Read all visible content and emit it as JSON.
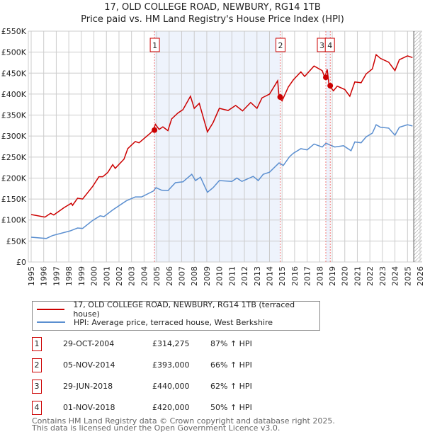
{
  "chart_data": {
    "type": "line",
    "title": "17, OLD COLLEGE ROAD, NEWBURY, RG14 1TB",
    "subtitle": "Price paid vs. HM Land Registry's House Price Index (HPI)",
    "xlim": [
      1995,
      2026
    ],
    "ylim": [
      0,
      550000
    ],
    "yticks": [
      {
        "v": 0,
        "l": "£0"
      },
      {
        "v": 50000,
        "l": "£50K"
      },
      {
        "v": 100000,
        "l": "£100K"
      },
      {
        "v": 150000,
        "l": "£150K"
      },
      {
        "v": 200000,
        "l": "£200K"
      },
      {
        "v": 250000,
        "l": "£250K"
      },
      {
        "v": 300000,
        "l": "£300K"
      },
      {
        "v": 350000,
        "l": "£350K"
      },
      {
        "v": 400000,
        "l": "£400K"
      },
      {
        "v": 450000,
        "l": "£450K"
      },
      {
        "v": 500000,
        "l": "£500K"
      },
      {
        "v": 550000,
        "l": "£550K"
      }
    ],
    "xticks": [
      "1995",
      "1996",
      "1997",
      "1998",
      "1999",
      "2000",
      "2001",
      "2002",
      "2003",
      "2004",
      "2005",
      "2006",
      "2007",
      "2008",
      "2009",
      "2010",
      "2011",
      "2012",
      "2013",
      "2014",
      "2015",
      "2016",
      "2017",
      "2018",
      "2019",
      "2020",
      "2021",
      "2022",
      "2023",
      "2024",
      "2025",
      "2026"
    ],
    "series": [
      {
        "name": "17, OLD COLLEGE ROAD, NEWBURY, RG14 1TB (terraced house)",
        "color": "#cc0000",
        "points": [
          [
            1995,
            113
          ],
          [
            1996.1,
            107
          ],
          [
            1996.55,
            116
          ],
          [
            1996.8,
            112
          ],
          [
            1997.6,
            129
          ],
          [
            1998.2,
            140
          ],
          [
            1998.3,
            135
          ],
          [
            1998.7,
            152
          ],
          [
            1999.1,
            150
          ],
          [
            1999.9,
            180
          ],
          [
            2000.4,
            203
          ],
          [
            2000.7,
            203
          ],
          [
            2001.1,
            213
          ],
          [
            2001.5,
            232
          ],
          [
            2001.7,
            223
          ],
          [
            2002.4,
            245
          ],
          [
            2002.7,
            270
          ],
          [
            2003.3,
            287
          ],
          [
            2003.6,
            284
          ],
          [
            2004.5,
            307
          ],
          [
            2004.74,
            314
          ],
          [
            2004.9,
            328
          ],
          [
            2005.2,
            316
          ],
          [
            2005.5,
            322
          ],
          [
            2005.9,
            313
          ],
          [
            2006.2,
            341
          ],
          [
            2006.7,
            355
          ],
          [
            2007.1,
            363
          ],
          [
            2007.7,
            395
          ],
          [
            2008,
            366
          ],
          [
            2008.4,
            378
          ],
          [
            2009.05,
            310
          ],
          [
            2009.5,
            332
          ],
          [
            2010,
            366
          ],
          [
            2010.7,
            361
          ],
          [
            2011.3,
            373
          ],
          [
            2011.85,
            360
          ],
          [
            2012.5,
            380
          ],
          [
            2013,
            366
          ],
          [
            2013.4,
            391
          ],
          [
            2014,
            400
          ],
          [
            2014.65,
            432
          ],
          [
            2014.76,
            393
          ],
          [
            2015,
            384
          ],
          [
            2015.5,
            417
          ],
          [
            2015.9,
            434
          ],
          [
            2016.5,
            453
          ],
          [
            2016.8,
            442
          ],
          [
            2017.55,
            467
          ],
          [
            2018.2,
            456
          ],
          [
            2018.4,
            440
          ],
          [
            2018.6,
            459
          ],
          [
            2018.75,
            420
          ],
          [
            2019.1,
            408
          ],
          [
            2019.4,
            419
          ],
          [
            2020,
            411
          ],
          [
            2020.4,
            395
          ],
          [
            2020.8,
            429
          ],
          [
            2021.3,
            427
          ],
          [
            2021.7,
            448
          ],
          [
            2022.2,
            460
          ],
          [
            2022.5,
            494
          ],
          [
            2022.85,
            485
          ],
          [
            2023.5,
            476
          ],
          [
            2024,
            456
          ],
          [
            2024.35,
            482
          ],
          [
            2025,
            491
          ],
          [
            2025.4,
            487
          ]
        ]
      },
      {
        "name": "HPI: Average price, terraced house, West Berkshire",
        "color": "#5b8fd0",
        "points": [
          [
            1995,
            59
          ],
          [
            1996.2,
            56
          ],
          [
            1996.7,
            63
          ],
          [
            1998.1,
            74
          ],
          [
            1998.7,
            81
          ],
          [
            1999.1,
            80
          ],
          [
            1999.9,
            99
          ],
          [
            2000.5,
            110
          ],
          [
            2000.8,
            108
          ],
          [
            2001.5,
            124
          ],
          [
            2002.6,
            146
          ],
          [
            2003.3,
            155
          ],
          [
            2003.8,
            155
          ],
          [
            2004.74,
            169
          ],
          [
            2004.95,
            177
          ],
          [
            2005.4,
            171
          ],
          [
            2005.9,
            170
          ],
          [
            2006.5,
            189
          ],
          [
            2007.1,
            191
          ],
          [
            2007.8,
            209
          ],
          [
            2008.1,
            194
          ],
          [
            2008.5,
            202
          ],
          [
            2009.05,
            166
          ],
          [
            2009.5,
            177
          ],
          [
            2010,
            194
          ],
          [
            2011,
            192
          ],
          [
            2011.4,
            200
          ],
          [
            2011.8,
            192
          ],
          [
            2012.7,
            204
          ],
          [
            2013.1,
            194
          ],
          [
            2013.5,
            209
          ],
          [
            2014,
            214
          ],
          [
            2014.76,
            236
          ],
          [
            2015.1,
            230
          ],
          [
            2015.6,
            251
          ],
          [
            2015.9,
            259
          ],
          [
            2016.5,
            270
          ],
          [
            2017,
            267
          ],
          [
            2017.55,
            281
          ],
          [
            2018.2,
            274
          ],
          [
            2018.5,
            283
          ],
          [
            2019.2,
            274
          ],
          [
            2019.9,
            277
          ],
          [
            2020.5,
            265
          ],
          [
            2020.8,
            286
          ],
          [
            2021.3,
            284
          ],
          [
            2021.7,
            298
          ],
          [
            2022.2,
            307
          ],
          [
            2022.5,
            327
          ],
          [
            2022.85,
            321
          ],
          [
            2023.5,
            319
          ],
          [
            2024,
            302
          ],
          [
            2024.35,
            321
          ],
          [
            2025,
            327
          ],
          [
            2025.4,
            324
          ]
        ]
      }
    ],
    "sales": [
      {
        "n": "1",
        "x": 2004.83,
        "y": 314.275
      },
      {
        "n": "2",
        "x": 2014.85,
        "y": 393
      },
      {
        "n": "3",
        "x": 2018.49,
        "y": 440
      },
      {
        "n": "4",
        "x": 2018.84,
        "y": 420
      }
    ],
    "shaded": [
      [
        2004.83,
        2014.85
      ],
      [
        2018.49,
        2018.84
      ]
    ],
    "forecast_from": 2025.5
  },
  "legend": [
    "17, OLD COLLEGE ROAD, NEWBURY, RG14 1TB (terraced house)",
    "HPI: Average price, terraced house, West Berkshire"
  ],
  "transactions": [
    {
      "n": "1",
      "date": "29-OCT-2004",
      "price": "£314,275",
      "hpi": "87% ↑ HPI"
    },
    {
      "n": "2",
      "date": "05-NOV-2014",
      "price": "£393,000",
      "hpi": "66% ↑ HPI"
    },
    {
      "n": "3",
      "date": "29-JUN-2018",
      "price": "£440,000",
      "hpi": "62% ↑ HPI"
    },
    {
      "n": "4",
      "date": "01-NOV-2018",
      "price": "£420,000",
      "hpi": "50% ↑ HPI"
    }
  ],
  "footer": [
    "Contains HM Land Registry data © Crown copyright and database right 2025.",
    "This data is licensed under the Open Government Licence v3.0."
  ]
}
